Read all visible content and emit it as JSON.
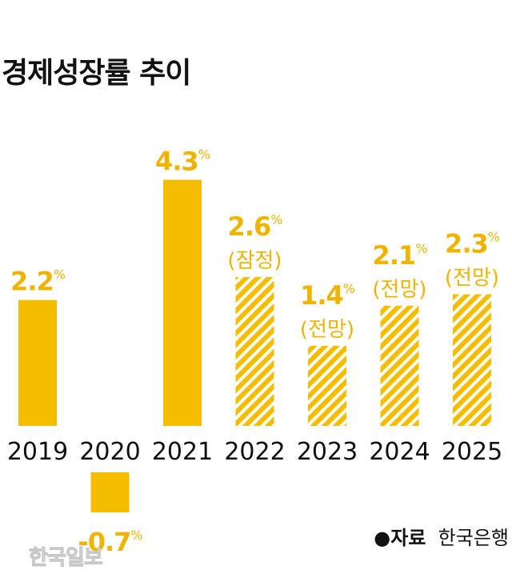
{
  "chart_data": {
    "type": "bar",
    "title": "경제성장률 추이",
    "categories": [
      "2019",
      "2020",
      "2021",
      "2022",
      "2023",
      "2024",
      "2025"
    ],
    "values": [
      2.2,
      -0.7,
      4.3,
      2.6,
      1.4,
      2.1,
      2.3
    ],
    "unit": "%",
    "notes": [
      "",
      "",
      "",
      "(잠정)",
      "(전망)",
      "(전망)",
      "(전망)"
    ],
    "hatched": [
      false,
      false,
      false,
      true,
      true,
      true,
      true
    ],
    "xlabel": "",
    "ylabel": "",
    "ylim": [
      -0.7,
      4.3
    ],
    "grid": false,
    "legend": "none"
  },
  "colors": {
    "bar": "#f5bd00",
    "label": "#f0b400",
    "text": "#111111"
  },
  "source": {
    "label": "자료",
    "value": "한국은행"
  },
  "watermark": "한국일보"
}
